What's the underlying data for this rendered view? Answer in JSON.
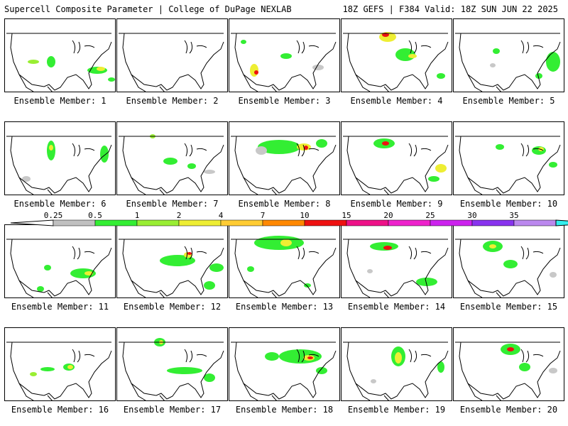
{
  "header": {
    "title_left": "Supercell Composite Parameter | College of DuPage NEXLAB",
    "title_right": "18Z GEFS | F384 Valid: 18Z SUN JUN 22 2025"
  },
  "panel_label_prefix": "Ensemble Member: ",
  "members": [
    {
      "id": "1",
      "blobs": [
        [
          130,
          72,
          14,
          5,
          "g"
        ],
        [
          135,
          70,
          6,
          3,
          "y"
        ],
        [
          65,
          60,
          6,
          8,
          "g"
        ],
        [
          150,
          85,
          5,
          3,
          "g"
        ],
        [
          40,
          60,
          8,
          3,
          "l"
        ]
      ]
    },
    {
      "id": "2",
      "blobs": []
    },
    {
      "id": "3",
      "blobs": [
        [
          35,
          72,
          6,
          9,
          "y"
        ],
        [
          38,
          75,
          3,
          3,
          "r"
        ],
        [
          80,
          52,
          8,
          4,
          "g"
        ],
        [
          125,
          68,
          8,
          4,
          "s"
        ],
        [
          20,
          32,
          4,
          3,
          "g"
        ]
      ]
    },
    {
      "id": "4",
      "blobs": [
        [
          65,
          25,
          12,
          7,
          "y"
        ],
        [
          62,
          22,
          5,
          3,
          "r"
        ],
        [
          90,
          50,
          14,
          9,
          "g"
        ],
        [
          100,
          52,
          6,
          3,
          "y"
        ],
        [
          140,
          80,
          6,
          4,
          "g"
        ]
      ]
    },
    {
      "id": "5",
      "blobs": [
        [
          140,
          60,
          10,
          14,
          "g"
        ],
        [
          60,
          45,
          5,
          4,
          "g"
        ],
        [
          120,
          80,
          5,
          4,
          "g"
        ],
        [
          55,
          65,
          4,
          3,
          "s"
        ]
      ]
    },
    {
      "id": "6",
      "blobs": [
        [
          65,
          40,
          6,
          14,
          "g"
        ],
        [
          65,
          36,
          3,
          4,
          "y"
        ],
        [
          140,
          45,
          6,
          12,
          "g"
        ],
        [
          30,
          80,
          6,
          4,
          "s"
        ]
      ]
    },
    {
      "id": "7",
      "blobs": [
        [
          75,
          55,
          10,
          5,
          "g"
        ],
        [
          105,
          62,
          6,
          4,
          "g"
        ],
        [
          130,
          70,
          8,
          3,
          "s"
        ],
        [
          50,
          20,
          4,
          3,
          "l"
        ]
      ]
    },
    {
      "id": "8",
      "blobs": [
        [
          70,
          35,
          30,
          10,
          "g"
        ],
        [
          105,
          35,
          10,
          5,
          "y"
        ],
        [
          108,
          36,
          3,
          3,
          "r"
        ],
        [
          130,
          30,
          8,
          6,
          "g"
        ],
        [
          45,
          40,
          8,
          6,
          "s"
        ]
      ]
    },
    {
      "id": "9",
      "blobs": [
        [
          60,
          30,
          15,
          7,
          "g"
        ],
        [
          62,
          30,
          5,
          3,
          "r"
        ],
        [
          140,
          65,
          8,
          6,
          "y"
        ],
        [
          130,
          80,
          8,
          4,
          "g"
        ]
      ]
    },
    {
      "id": "10",
      "blobs": [
        [
          120,
          40,
          10,
          6,
          "g"
        ],
        [
          123,
          38,
          4,
          3,
          "y"
        ],
        [
          140,
          60,
          6,
          4,
          "g"
        ],
        [
          65,
          35,
          6,
          4,
          "g"
        ]
      ]
    },
    {
      "id": "11",
      "blobs": [
        [
          110,
          68,
          18,
          7,
          "g"
        ],
        [
          118,
          68,
          6,
          3,
          "y"
        ],
        [
          60,
          60,
          5,
          4,
          "g"
        ],
        [
          50,
          90,
          5,
          4,
          "g"
        ]
      ]
    },
    {
      "id": "12",
      "blobs": [
        [
          85,
          50,
          25,
          8,
          "g"
        ],
        [
          100,
          42,
          6,
          4,
          "y"
        ],
        [
          102,
          40,
          3,
          2,
          "r"
        ],
        [
          140,
          60,
          10,
          6,
          "g"
        ],
        [
          130,
          85,
          8,
          6,
          "g"
        ]
      ]
    },
    {
      "id": "13",
      "blobs": [
        [
          70,
          25,
          35,
          10,
          "g"
        ],
        [
          80,
          25,
          8,
          5,
          "y"
        ],
        [
          30,
          62,
          5,
          4,
          "g"
        ],
        [
          110,
          85,
          5,
          3,
          "g"
        ]
      ]
    },
    {
      "id": "14",
      "blobs": [
        [
          60,
          30,
          20,
          6,
          "g"
        ],
        [
          65,
          32,
          6,
          3,
          "r"
        ],
        [
          120,
          80,
          15,
          6,
          "g"
        ],
        [
          40,
          65,
          4,
          3,
          "s"
        ]
      ]
    },
    {
      "id": "15",
      "blobs": [
        [
          55,
          30,
          14,
          8,
          "g"
        ],
        [
          55,
          30,
          5,
          3,
          "y"
        ],
        [
          80,
          55,
          10,
          6,
          "g"
        ],
        [
          140,
          70,
          5,
          4,
          "s"
        ]
      ]
    },
    {
      "id": "16",
      "blobs": [
        [
          90,
          55,
          8,
          5,
          "g"
        ],
        [
          92,
          55,
          4,
          3,
          "y"
        ],
        [
          60,
          58,
          10,
          3,
          "g"
        ],
        [
          40,
          65,
          5,
          3,
          "l"
        ]
      ]
    },
    {
      "id": "17",
      "blobs": [
        [
          95,
          60,
          25,
          5,
          "g"
        ],
        [
          60,
          20,
          8,
          6,
          "g"
        ],
        [
          62,
          20,
          3,
          3,
          "y"
        ],
        [
          130,
          70,
          8,
          6,
          "g"
        ]
      ]
    },
    {
      "id": "18",
      "blobs": [
        [
          100,
          40,
          30,
          10,
          "g"
        ],
        [
          112,
          42,
          8,
          4,
          "y"
        ],
        [
          114,
          42,
          4,
          2,
          "r"
        ],
        [
          60,
          40,
          10,
          6,
          "g"
        ],
        [
          130,
          60,
          8,
          5,
          "g"
        ]
      ]
    },
    {
      "id": "19",
      "blobs": [
        [
          80,
          40,
          10,
          14,
          "g"
        ],
        [
          80,
          42,
          5,
          8,
          "y"
        ],
        [
          140,
          55,
          5,
          8,
          "g"
        ],
        [
          45,
          75,
          4,
          3,
          "s"
        ]
      ]
    },
    {
      "id": "20",
      "blobs": [
        [
          80,
          30,
          14,
          8,
          "g"
        ],
        [
          80,
          30,
          5,
          3,
          "r"
        ],
        [
          100,
          55,
          8,
          6,
          "g"
        ],
        [
          140,
          60,
          6,
          4,
          "s"
        ]
      ]
    }
  ],
  "colorbar": {
    "labels": [
      "0.25",
      "0.5",
      "1",
      "2",
      "4",
      "7",
      "10",
      "15",
      "20",
      "25",
      "30",
      "35"
    ],
    "colors": [
      "#c0c0c0",
      "#33ee33",
      "#99ee33",
      "#eeee33",
      "#ffcc33",
      "#ff8800",
      "#ee1111",
      "#ee1188",
      "#ee22cc",
      "#cc22ee",
      "#8833ee",
      "#bb88ee",
      "#33eeee"
    ],
    "blob_colors": {
      "s": "#c8c8c8",
      "g": "#33ee33",
      "l": "#99ee33",
      "y": "#eeee33",
      "o": "#ffaa33",
      "r": "#ee1111"
    }
  }
}
